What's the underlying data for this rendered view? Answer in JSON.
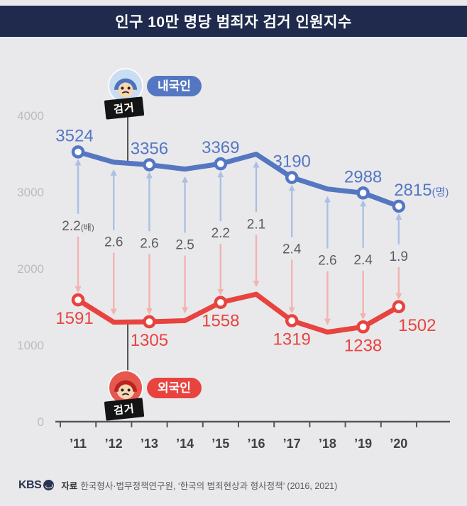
{
  "title": "인구 10만 명당 범죄자 검거 인원지수",
  "badges": {
    "domestic": {
      "label": "내국인",
      "tag": "검거",
      "color": "#5577c2",
      "icon": "blue-hooded-face-icon"
    },
    "foreign": {
      "label": "외국인",
      "tag": "검거",
      "color": "#e8433e",
      "icon": "red-hooded-face-icon"
    }
  },
  "footer": {
    "logo": "KBS",
    "source_label": "자료",
    "source_text": "한국형사·법무정책연구원, ‘한국의 범죄현상과 형사정책’ (2016, 2021)"
  },
  "chart_data": {
    "type": "line",
    "title": "인구 10만 명당 범죄자 검거 인원지수",
    "categories": [
      "’11",
      "’12",
      "’13",
      "’14",
      "’15",
      "’16",
      "’17",
      "’18",
      "’19",
      "’20"
    ],
    "series": [
      {
        "name": "내국인 검거",
        "color": "#5577c2",
        "values": [
          3524,
          3390,
          3356,
          3300,
          3369,
          3495,
          3190,
          3040,
          2988,
          2815
        ],
        "point_labels": [
          "3524",
          null,
          "3356",
          null,
          "3369",
          null,
          "3190",
          null,
          "2988",
          "2815(명)"
        ]
      },
      {
        "name": "외국인 검거",
        "color": "#e8433e",
        "values": [
          1591,
          1300,
          1305,
          1320,
          1558,
          1665,
          1319,
          1170,
          1238,
          1502
        ],
        "point_labels": [
          "1591",
          null,
          "1305",
          null,
          "1558",
          null,
          "1319",
          null,
          "1238",
          "1502"
        ]
      }
    ],
    "ratios": [
      "2.2(배)",
      "2.6",
      "2.6",
      "2.5",
      "2.2",
      "2.1",
      "2.4",
      "2.6",
      "2.4",
      "1.9"
    ],
    "ratio_unit": "배",
    "value_unit": "명",
    "ylim": [
      0,
      4000
    ],
    "yticks": [
      0,
      1000,
      2000,
      3000,
      4000
    ],
    "grid": false,
    "legend_position": "in-chart-badges",
    "arrow_up_color": "#abc0e2",
    "arrow_down_color": "#f2b3b0",
    "axis_color": "#56575b",
    "ytick_color": "#babbc1",
    "xtick_color": "#3f4043",
    "ratio_label_color": "#5b5c60"
  }
}
